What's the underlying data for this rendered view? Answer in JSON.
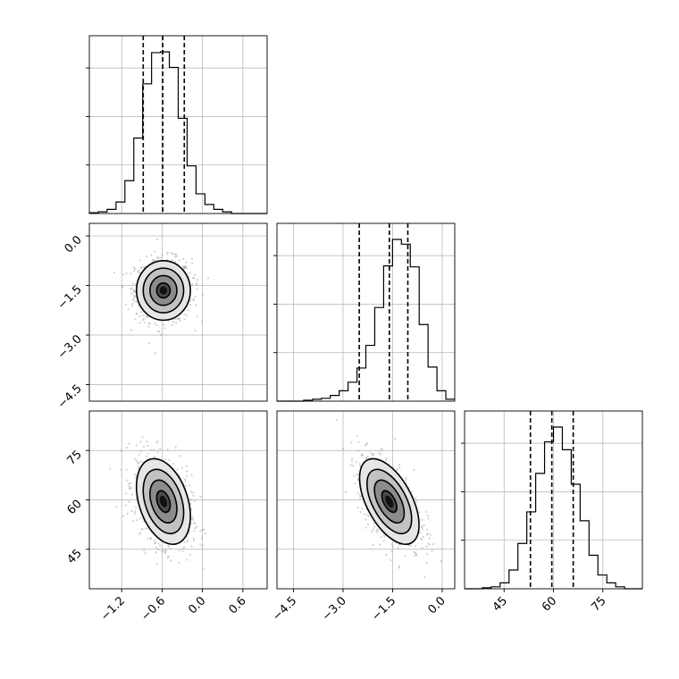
{
  "chart_data": {
    "type": "corner",
    "grid": true,
    "params": [
      "",
      "",
      ""
    ],
    "ticks": {
      "p0": [
        "−1.2",
        "−0.6",
        "0.0",
        "0.6"
      ],
      "p1": [
        "0.0",
        "−1.5",
        "−3.0",
        "−4.5"
      ],
      "p1_bottom": [
        "−4.5",
        "−3.0",
        "−1.5",
        "0.0"
      ],
      "p2": [
        "75",
        "60",
        "45"
      ],
      "p2_bottom": [
        "45",
        "60",
        "75"
      ]
    },
    "ranges": {
      "p0": [
        -1.68,
        0.96
      ],
      "p1": [
        -5.0,
        0.38
      ],
      "p2": [
        33.0,
        87.0
      ]
    },
    "tick_values": {
      "p0": [
        -1.2,
        -0.6,
        0.0,
        0.6
      ],
      "p1": [
        -4.5,
        -3.0,
        -1.5,
        0.0
      ],
      "p2": [
        45,
        60,
        75
      ]
    },
    "histograms": [
      {
        "param": "p0",
        "edges_start": -1.68,
        "bin_width": 0.132,
        "counts": [
          1,
          2,
          5,
          14,
          40,
          92,
          158,
          196,
          197,
          178,
          116,
          58,
          24,
          11,
          5,
          2,
          0,
          0,
          0,
          0
        ],
        "quantiles": [
          -0.88,
          -0.59,
          -0.27
        ]
      },
      {
        "param": "p1",
        "edges_start": -5.0,
        "bin_width": 0.269,
        "counts": [
          0,
          0,
          0,
          1,
          2,
          3,
          6,
          11,
          20,
          35,
          59,
          99,
          143,
          171,
          166,
          142,
          81,
          36,
          11,
          2
        ],
        "quantiles": [
          -2.51,
          -1.6,
          -1.04
        ]
      },
      {
        "param": "p2",
        "edges_start": 33.0,
        "bin_width": 2.7,
        "counts": [
          0,
          0,
          1,
          2,
          6,
          19,
          46,
          78,
          117,
          149,
          164,
          141,
          106,
          69,
          34,
          14,
          6,
          2,
          0,
          0
        ],
        "quantiles": [
          53.0,
          59.5,
          66.0
        ]
      }
    ],
    "pairs": [
      {
        "x": "p0",
        "y": "p1",
        "center": [
          -0.58,
          -1.65
        ],
        "sd": [
          0.2,
          0.45
        ],
        "rho": 0.0
      },
      {
        "x": "p0",
        "y": "p2",
        "center": [
          -0.58,
          59.5
        ],
        "sd": [
          0.2,
          6.5
        ],
        "rho": -0.35
      },
      {
        "x": "p1",
        "y": "p2",
        "center": [
          -1.6,
          59.5
        ],
        "sd": [
          0.45,
          6.5
        ],
        "rho": -0.55
      }
    ],
    "contour_levels_sigma": [
      0.5,
      1.0,
      1.5,
      2.0
    ]
  }
}
